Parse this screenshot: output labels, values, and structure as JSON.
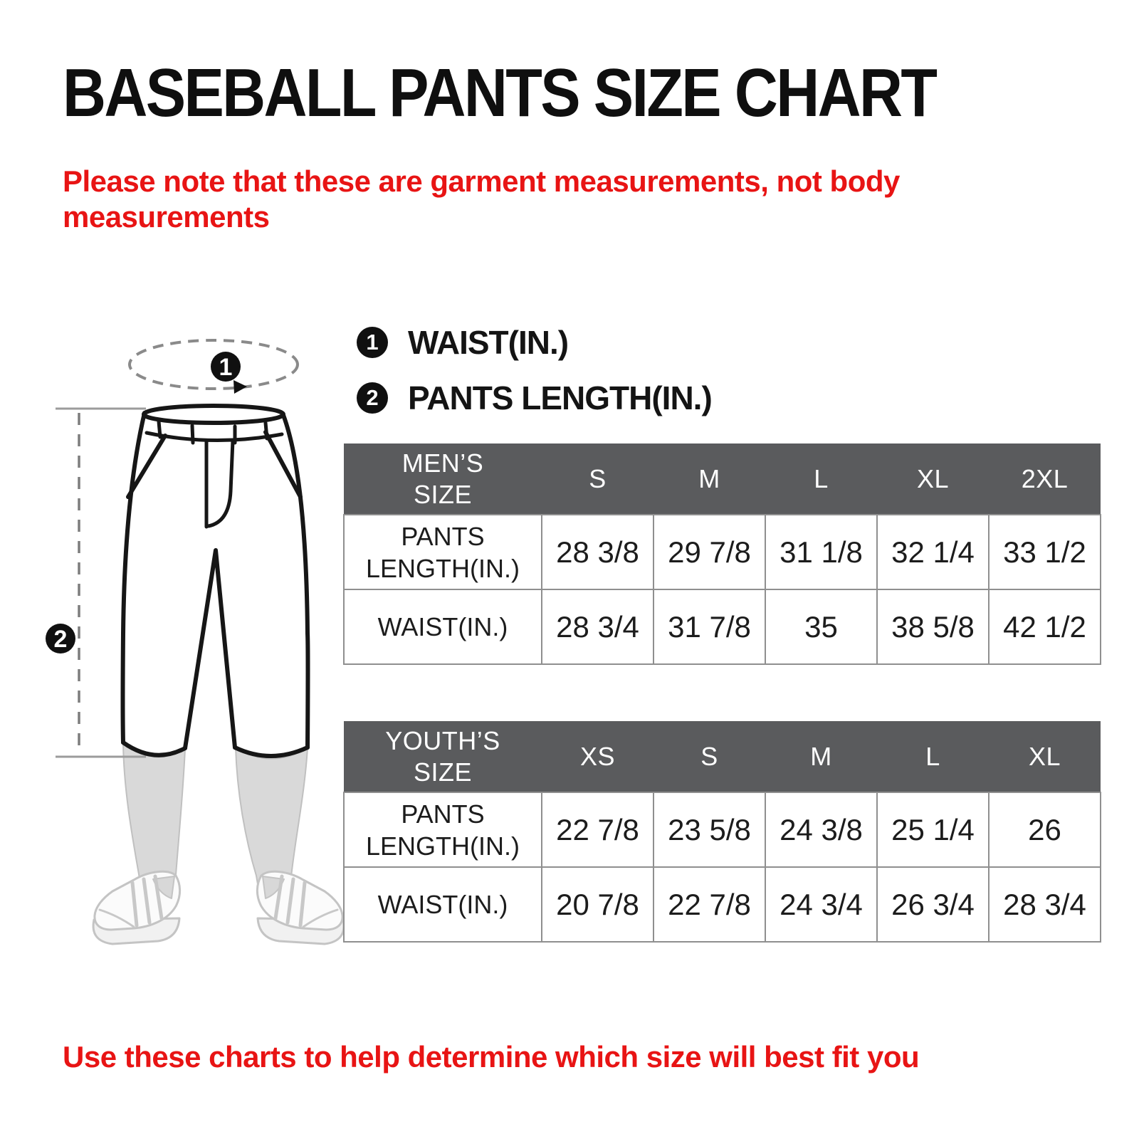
{
  "page": {
    "title": "BASEBALL PANTS SIZE CHART",
    "note_top": "Please note that these are garment measurements, not body measurements",
    "note_bottom": "Use these charts to help determine which size will best fit you"
  },
  "legend": {
    "items": [
      {
        "number": "1",
        "label": "WAIST(IN.)"
      },
      {
        "number": "2",
        "label": "PANTS LENGTH(IN.)"
      }
    ]
  },
  "diagram": {
    "waist_marker": "1",
    "length_marker": "2"
  },
  "tables": [
    {
      "name": "mens",
      "header": [
        "MEN’S\nSIZE",
        "S",
        "M",
        "L",
        "XL",
        "2XL"
      ],
      "rows": [
        [
          "PANTS\nLENGTH(IN.)",
          "28 3/8",
          "29 7/8",
          "31 1/8",
          "32 1/4",
          "33 1/2"
        ],
        [
          "WAIST(IN.)",
          "28 3/4",
          "31 7/8",
          "35",
          "38 5/8",
          "42 1/2"
        ]
      ]
    },
    {
      "name": "youths",
      "header": [
        "YOUTH’S\nSIZE",
        "XS",
        "S",
        "M",
        "L",
        "XL"
      ],
      "rows": [
        [
          "PANTS\nLENGTH(IN.)",
          "22 7/8",
          "23 5/8",
          "24 3/8",
          "25 1/4",
          "26"
        ],
        [
          "WAIST(IN.)",
          "20 7/8",
          "22 7/8",
          "24 3/4",
          "26 3/4",
          "28 3/4"
        ]
      ]
    }
  ],
  "colors": {
    "note_red": "#e81414",
    "table_header_gray": "#5a5b5d",
    "table_border_gray": "#8f8f8f",
    "ink_black": "#141414",
    "sock_gray": "#d9d9d9",
    "shoe_gray": "#c4c4c4"
  }
}
